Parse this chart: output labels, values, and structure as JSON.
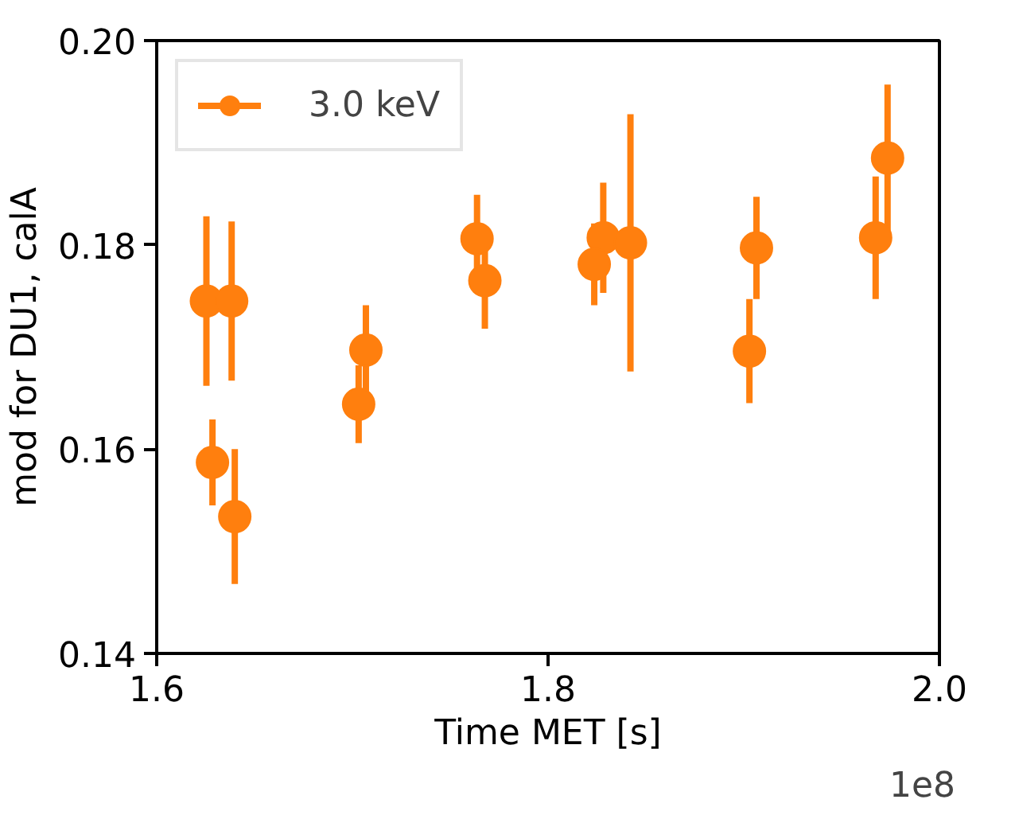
{
  "chart_data": {
    "type": "scatter",
    "xlabel": "Time MET [s]",
    "ylabel": "mod for DU1, calA",
    "x": [
      1.6254,
      1.6383,
      1.6285,
      1.6399,
      1.7032,
      1.7069,
      1.7637,
      1.7677,
      1.8282,
      1.8236,
      1.8421,
      1.9065,
      1.9029,
      1.9735,
      1.9674
    ],
    "series": [
      {
        "name": "3.0 keV",
        "color": "#ff7f0e",
        "values": [
          0.1745,
          0.1745,
          0.1587,
          0.1534,
          0.1644,
          0.1697,
          0.1806,
          0.1765,
          0.1807,
          0.1781,
          0.1802,
          0.1797,
          0.1696,
          0.1885,
          0.1807
        ],
        "errors": [
          0.0083,
          0.0078,
          0.0042,
          0.0066,
          0.0038,
          0.0044,
          0.0043,
          0.0047,
          0.0054,
          0.004,
          0.0126,
          0.005,
          0.0051,
          0.0072,
          0.006
        ]
      }
    ],
    "xlim": [
      1.6,
      2.0
    ],
    "ylim": [
      0.14,
      0.2
    ],
    "xticks": [
      {
        "value": 1.6,
        "label": "1.6"
      },
      {
        "value": 1.8,
        "label": "1.8"
      },
      {
        "value": 2.0,
        "label": "2.0"
      }
    ],
    "yticks": [
      {
        "value": 0.14,
        "label": "0.14"
      },
      {
        "value": 0.16,
        "label": "0.16"
      },
      {
        "value": 0.18,
        "label": "0.18"
      },
      {
        "value": 0.2,
        "label": "0.20"
      }
    ],
    "annotations": [
      "1e8"
    ],
    "legend": "top left",
    "marker": "circle",
    "grid": false
  }
}
